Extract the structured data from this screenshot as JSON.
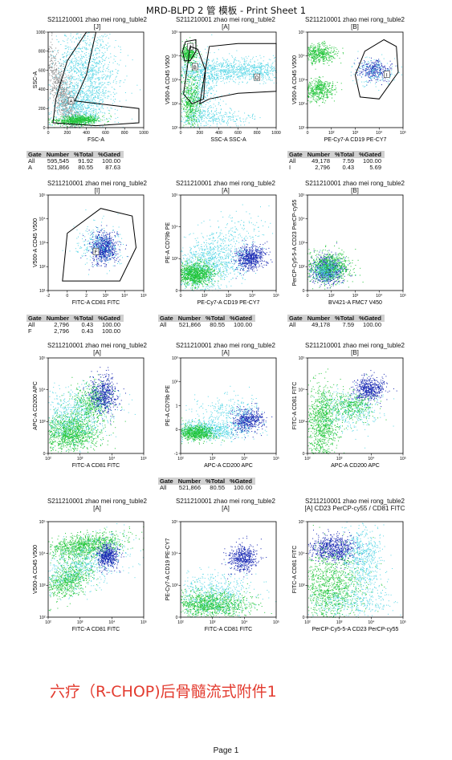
{
  "header": {
    "title": "MRD-BLPD 2 管 模板 - Print Sheet 1"
  },
  "footnote": "六疗（R-CHOP)后骨髓流式附件1",
  "page_label": "Page 1",
  "colors": {
    "population_green": "#22c53a",
    "population_cyan": "#58d6e6",
    "population_blue": "#1b2bb4",
    "population_gray": "#8c8c8c",
    "gate_line": "#000000",
    "header_fill": "#d0d0d0",
    "footnote_red": "#e33b2f"
  },
  "chart_data": [
    {
      "id": "p1",
      "type": "scatter",
      "title": "S211210001 zhao mei rong_tuble2",
      "gate": "[J]",
      "xlabel": "FSC-A",
      "ylabel": "SSC-A",
      "scale": "linear",
      "xlim": [
        0,
        1000
      ],
      "ylim": [
        0,
        1000
      ],
      "x_ticks": [
        "0",
        "200",
        "400",
        "600",
        "800",
        "1000"
      ],
      "y_ticks": [
        "0",
        "200",
        "400",
        "600",
        "800",
        "1000"
      ],
      "gates": [
        {
          "name": "A",
          "shape": "polygon"
        }
      ]
    },
    {
      "id": "p2",
      "type": "scatter",
      "title": "S211210001 zhao mei rong_tuble2",
      "gate": "[A]",
      "xlabel": "SSC-A SSC-A",
      "ylabel": "V500-A CD45 V500",
      "scale": "x linear, y log",
      "xlim": [
        0,
        1000
      ],
      "ylim": [
        1,
        100000
      ],
      "x_ticks": [
        "0",
        "200",
        "400",
        "600",
        "800",
        "1000"
      ],
      "y_ticks": [
        "10¹",
        "10²",
        "10³",
        "10⁴",
        "10⁵"
      ],
      "gates": [
        {
          "name": "J",
          "shape": "polygon"
        },
        {
          "name": "B",
          "shape": "polygon"
        },
        {
          "name": "D",
          "shape": "polygon"
        }
      ]
    },
    {
      "id": "p3",
      "type": "scatter",
      "title": "S211210001 zhao mei rong_tuble2",
      "gate": "[B]",
      "xlabel": "PE-Cy7-A CD19 PE-CY7",
      "ylabel": "V500-A CD45 V500",
      "scale": "log",
      "x_ticks": [
        "0",
        "10²",
        "10³",
        "10⁴",
        "10⁵"
      ],
      "y_ticks": [
        "10¹",
        "10²",
        "10³",
        "10⁴",
        "10⁵"
      ],
      "gates": [
        {
          "name": "I",
          "shape": "polygon"
        }
      ]
    },
    {
      "id": "p4",
      "type": "scatter",
      "title": "S211210001 zhao mei rong_tuble2",
      "gate": "[I]",
      "xlabel": "FITC-A CD81 FITC",
      "ylabel": "V500-A CD45 V500",
      "scale": "log",
      "x_ticks": [
        "-2",
        "0",
        "2",
        "10³",
        "10⁴",
        "10⁵"
      ],
      "y_ticks": [
        "10¹",
        "10²",
        "10³",
        "10⁴",
        "10⁵"
      ],
      "gates": [
        {
          "name": "F",
          "shape": "polygon"
        }
      ]
    },
    {
      "id": "p5",
      "type": "scatter",
      "title": "S211210001 zhao mei rong_tuble2",
      "gate": "[A]",
      "xlabel": "PE-Cy7-A CD19 PE-CY7",
      "ylabel": "PE-A CD79b PE",
      "scale": "log",
      "x_ticks": [
        "0",
        "10²",
        "10³",
        "10⁴",
        "10⁵"
      ],
      "y_ticks": [
        "0",
        "10³",
        "10⁴",
        "10⁵"
      ],
      "gates": []
    },
    {
      "id": "p6",
      "type": "scatter",
      "title": "S211210001 zhao mei rong_tuble2",
      "gate": "[B]",
      "xlabel": "BV421-A FMC7  V450",
      "ylabel": "PerCP-Cy5-5-A CD23 PerCP-cy55",
      "scale": "log",
      "x_ticks": [
        "0",
        "10²",
        "10³",
        "10⁴",
        "10⁵"
      ],
      "y_ticks": [
        "0",
        "10²",
        "10³",
        "10⁴",
        "10⁵"
      ],
      "gates": []
    },
    {
      "id": "p7",
      "type": "scatter",
      "title": "S211210001 zhao mei rong_tuble2",
      "gate": "[A]",
      "xlabel": "FITC-A CD81 FITC",
      "ylabel": "APC-A CD200 APC",
      "scale": "log",
      "x_ticks": [
        "10²",
        "10³",
        "10⁴",
        "10⁵"
      ],
      "y_ticks": [
        "0",
        "10³",
        "10⁴",
        "10⁵"
      ],
      "gates": []
    },
    {
      "id": "p8",
      "type": "scatter",
      "title": "S211210001 zhao mei rong_tuble2",
      "gate": "[A]",
      "xlabel": "APC-A CD200 APC",
      "ylabel": "PE-A CD79b PE",
      "scale": "log",
      "x_ticks": [
        "10²",
        "10³",
        "10⁴",
        "10⁵"
      ],
      "y_ticks": [
        "-1",
        "0",
        "1",
        "10²",
        "10³"
      ],
      "gates": []
    },
    {
      "id": "p9",
      "type": "scatter",
      "title": "S211210001 zhao mei rong_tuble2",
      "gate": "[B]",
      "xlabel": "APC-A CD200 APC",
      "ylabel": "FITC-A CD81 FITC",
      "scale": "log",
      "x_ticks": [
        "10²",
        "10³",
        "10⁴",
        "10⁵"
      ],
      "y_ticks": [
        "0",
        "10³",
        "10⁴",
        "10⁵"
      ],
      "gates": []
    },
    {
      "id": "p10",
      "type": "scatter",
      "title": "S211210001 zhao mei rong_tuble2",
      "gate": "[A]",
      "xlabel": "FITC-A CD81 FITC",
      "ylabel": "V500-A CD45 V500",
      "scale": "log",
      "x_ticks": [
        "10²",
        "10³",
        "10⁴",
        "10⁵"
      ],
      "y_ticks": [
        "10²",
        "10³",
        "10⁴",
        "10⁵"
      ],
      "gates": []
    },
    {
      "id": "p11",
      "type": "scatter",
      "title": "S211210001 zhao mei rong_tuble2",
      "gate": "[A]",
      "xlabel": "FITC-A CD81 FITC",
      "ylabel": "PE-Cy7-A CD19 PE-CY7",
      "scale": "log",
      "x_ticks": [
        "10²",
        "10³",
        "10⁴",
        "10⁵"
      ],
      "y_ticks": [
        "0",
        "10³",
        "10⁴",
        "10⁵"
      ],
      "gates": []
    },
    {
      "id": "p12",
      "type": "scatter",
      "title": "S211210001 zhao mei rong_tuble2",
      "gate": "[A] CD23 PerCP-cy55 / CD81 FITC",
      "xlabel": "PerCP-Cy5-5-A CD23 PerCP-cy55",
      "ylabel": "FITC-A CD81 FITC",
      "scale": "log",
      "x_ticks": [
        "10²",
        "10³",
        "10⁴",
        "10⁵"
      ],
      "y_ticks": [
        "0",
        "10³",
        "10⁴",
        "10⁵"
      ],
      "gates": []
    },
    {
      "id": "stats1",
      "type": "table",
      "for_plot": "p1",
      "headers": [
        "Gate",
        "Number",
        "%Total",
        "%Gated"
      ],
      "rows": [
        [
          "All",
          "595,545",
          "91.92",
          "100.00"
        ],
        [
          "A",
          "521,866",
          "80.55",
          "87.63"
        ]
      ]
    },
    {
      "id": "stats3",
      "type": "table",
      "for_plot": "p3",
      "headers": [
        "Gate",
        "Number",
        "%Total",
        "%Gated"
      ],
      "rows": [
        [
          "All",
          "49,178",
          "7.59",
          "100.00"
        ],
        [
          "I",
          "2,796",
          "0.43",
          "5.69"
        ]
      ]
    },
    {
      "id": "stats4",
      "type": "table",
      "for_plot": "p4",
      "headers": [
        "Gate",
        "Number",
        "%Total",
        "%Gated"
      ],
      "rows": [
        [
          "All",
          "2,796",
          "0.43",
          "100.00"
        ],
        [
          "F",
          "2,796",
          "0.43",
          "100.00"
        ]
      ]
    },
    {
      "id": "stats5",
      "type": "table",
      "for_plot": "p5",
      "headers": [
        "Gate",
        "Number",
        "%Total",
        "%Gated"
      ],
      "rows": [
        [
          "All",
          "521,866",
          "80.55",
          "100.00"
        ]
      ]
    },
    {
      "id": "stats6",
      "type": "table",
      "for_plot": "p6",
      "headers": [
        "Gate",
        "Number",
        "%Total",
        "%Gated"
      ],
      "rows": [
        [
          "All",
          "49,178",
          "7.59",
          "100.00"
        ]
      ]
    },
    {
      "id": "stats8",
      "type": "table",
      "for_plot": "p8",
      "headers": [
        "Gate",
        "Number",
        "%Total",
        "%Gated"
      ],
      "rows": [
        [
          "All",
          "521,866",
          "80.55",
          "100.00"
        ]
      ]
    }
  ]
}
